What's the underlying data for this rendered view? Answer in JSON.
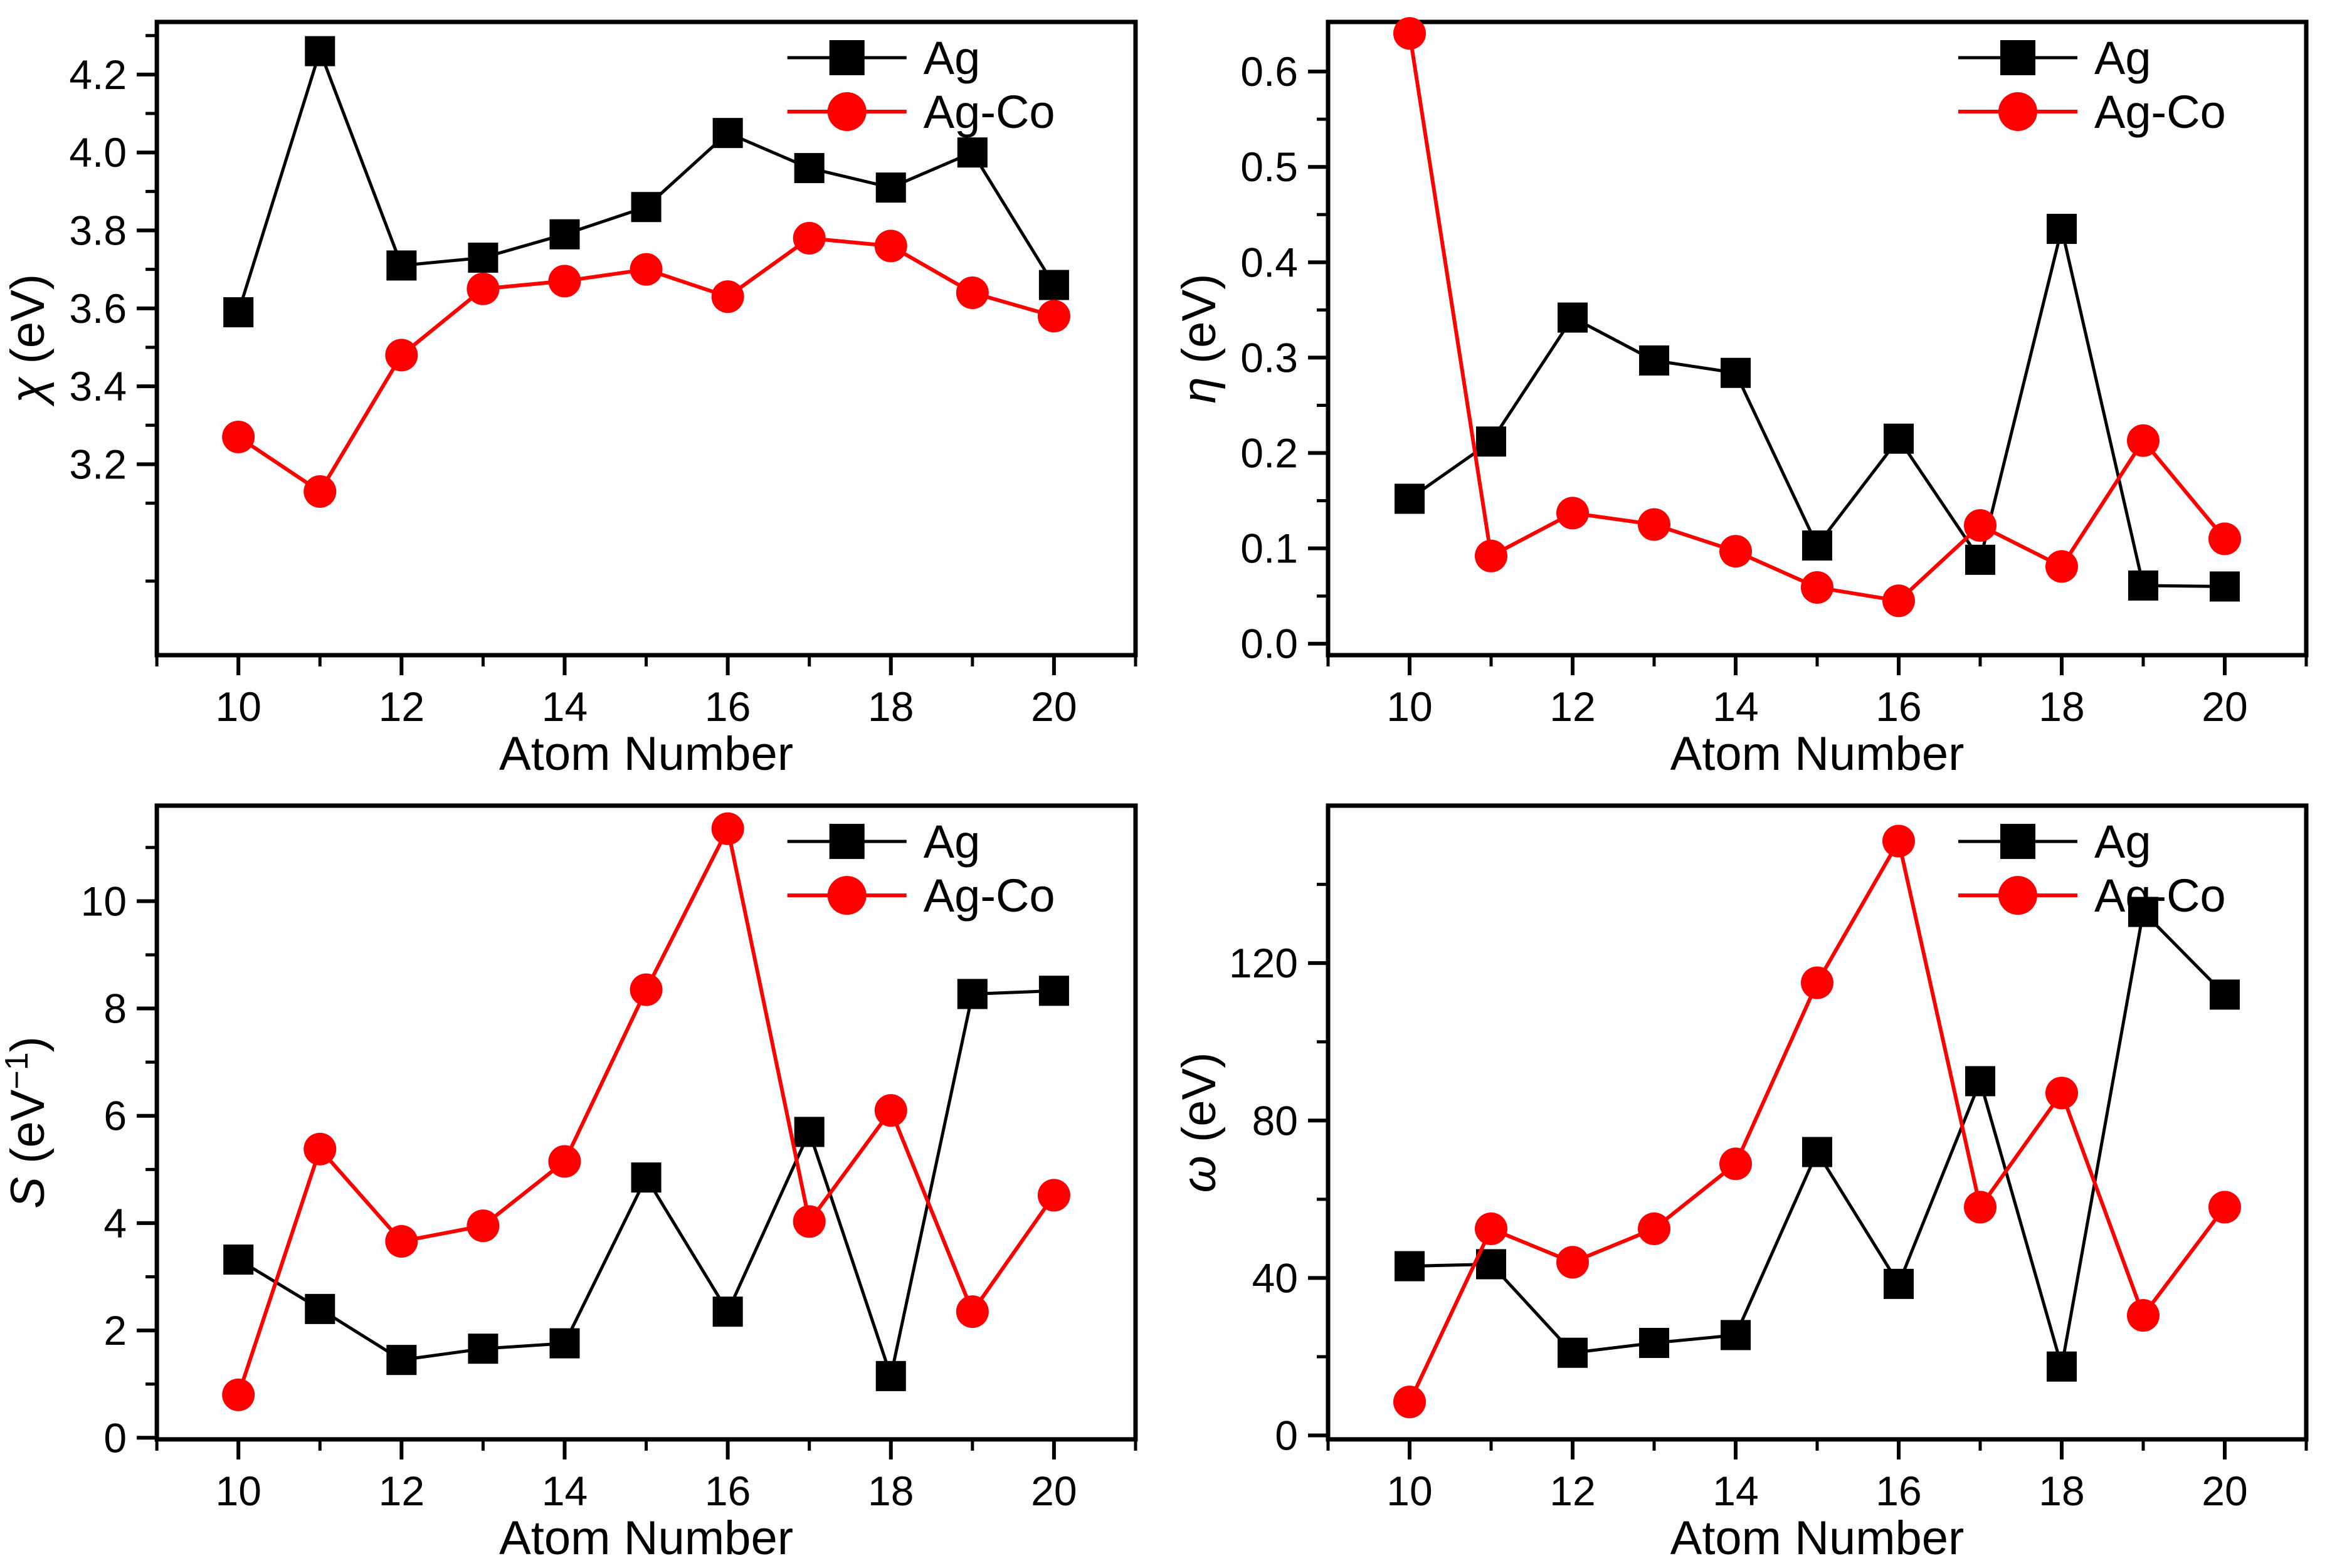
{
  "figure": {
    "background": "#fcfdfe",
    "xlabel": "Atom Number"
  },
  "colors": {
    "ag": "#000000",
    "agco": "#ff0000",
    "text": "#000000"
  },
  "legend": {
    "labels": [
      "Ag",
      "Ag-Co"
    ]
  },
  "chart_data": [
    {
      "id": "chi",
      "type": "line",
      "title": "",
      "xlabel": "Atom Number",
      "ylabel": "χ (eV)",
      "ylabel_symbol": "χ",
      "ylabel_unit_pre": " (eV",
      "ylabel_sup": "",
      "ylabel_unit_post": ")",
      "x": [
        10,
        11,
        12,
        13,
        14,
        15,
        16,
        17,
        18,
        19,
        20
      ],
      "series": [
        {
          "name": "Ag",
          "marker": "square",
          "color": "#000000",
          "values": [
            3.59,
            4.26,
            3.71,
            3.73,
            3.79,
            3.86,
            4.05,
            3.96,
            3.91,
            4.0,
            3.66
          ]
        },
        {
          "name": "Ag-Co",
          "marker": "circle",
          "color": "#ff0000",
          "values": [
            3.27,
            3.13,
            3.48,
            3.65,
            3.67,
            3.7,
            3.63,
            3.78,
            3.76,
            3.64,
            3.58
          ]
        }
      ],
      "xlim": [
        9,
        21
      ],
      "ylim": [
        2.71,
        4.335
      ],
      "xticks": [
        10,
        12,
        14,
        16,
        18,
        20
      ],
      "xtick_labels": [
        "10",
        "12",
        "14",
        "16",
        "18",
        "20"
      ],
      "xminor": [
        9,
        11,
        13,
        15,
        17,
        19,
        21
      ],
      "yticks": [
        3.2,
        3.4,
        3.6,
        3.8,
        4.0,
        4.2
      ],
      "ytick_labels": [
        "3.2",
        "3.4",
        "3.6",
        "3.8",
        "4.0",
        "4.2"
      ],
      "yminor": [
        2.9,
        3.1,
        3.3,
        3.5,
        3.7,
        3.9,
        4.1,
        4.3
      ],
      "grid": false,
      "legend_position": "top-right"
    },
    {
      "id": "eta",
      "type": "line",
      "title": "",
      "xlabel": "Atom Number",
      "ylabel": "η (eV)",
      "ylabel_symbol": "η",
      "ylabel_unit_pre": " (eV",
      "ylabel_sup": "",
      "ylabel_unit_post": ")",
      "x": [
        10,
        11,
        12,
        13,
        14,
        15,
        16,
        17,
        18,
        19,
        20
      ],
      "series": [
        {
          "name": "Ag",
          "marker": "square",
          "color": "#000000",
          "values": [
            0.152,
            0.212,
            0.342,
            0.297,
            0.284,
            0.103,
            0.215,
            0.088,
            0.435,
            0.061,
            0.06
          ]
        },
        {
          "name": "Ag-Co",
          "marker": "circle",
          "color": "#ff0000",
          "values": [
            0.64,
            0.092,
            0.137,
            0.125,
            0.097,
            0.059,
            0.045,
            0.124,
            0.081,
            0.213,
            0.11
          ]
        }
      ],
      "xlim": [
        9,
        21
      ],
      "ylim": [
        -0.012,
        0.652
      ],
      "xticks": [
        10,
        12,
        14,
        16,
        18,
        20
      ],
      "xtick_labels": [
        "10",
        "12",
        "14",
        "16",
        "18",
        "20"
      ],
      "xminor": [
        9,
        11,
        13,
        15,
        17,
        19,
        21
      ],
      "yticks": [
        0.0,
        0.1,
        0.2,
        0.3,
        0.4,
        0.5,
        0.6
      ],
      "ytick_labels": [
        "0.0",
        "0.1",
        "0.2",
        "0.3",
        "0.4",
        "0.5",
        "0.6"
      ],
      "yminor": [
        0.05,
        0.15,
        0.25,
        0.35,
        0.45,
        0.55
      ],
      "grid": false,
      "legend_position": "top-right"
    },
    {
      "id": "S",
      "type": "line",
      "title": "",
      "xlabel": "Atom Number",
      "ylabel": "S (eV⁻¹)",
      "ylabel_symbol": "S",
      "ylabel_unit_pre": " (eV",
      "ylabel_sup": "−1",
      "ylabel_unit_post": ")",
      "x": [
        10,
        11,
        12,
        13,
        14,
        15,
        16,
        17,
        18,
        19,
        20
      ],
      "series": [
        {
          "name": "Ag",
          "marker": "square",
          "color": "#000000",
          "values": [
            3.32,
            2.4,
            1.45,
            1.66,
            1.76,
            4.85,
            2.35,
            5.7,
            1.15,
            8.27,
            8.33
          ]
        },
        {
          "name": "Ag-Co",
          "marker": "circle",
          "color": "#ff0000",
          "values": [
            0.8,
            5.38,
            3.66,
            3.95,
            5.15,
            8.35,
            11.35,
            4.03,
            6.1,
            2.35,
            4.52
          ]
        }
      ],
      "xlim": [
        9,
        21
      ],
      "ylim": [
        -0.03,
        11.78
      ],
      "xticks": [
        10,
        12,
        14,
        16,
        18,
        20
      ],
      "xtick_labels": [
        "10",
        "12",
        "14",
        "16",
        "18",
        "20"
      ],
      "xminor": [
        9,
        11,
        13,
        15,
        17,
        19,
        21
      ],
      "yticks": [
        0,
        2,
        4,
        6,
        8,
        10
      ],
      "ytick_labels": [
        "0",
        "2",
        "4",
        "6",
        "8",
        "10"
      ],
      "yminor": [
        1,
        3,
        5,
        7,
        9,
        11
      ],
      "grid": false,
      "legend_position": "top-right"
    },
    {
      "id": "omega",
      "type": "line",
      "title": "",
      "xlabel": "Atom Number",
      "ylabel": "ω (eV)",
      "ylabel_symbol": "ω",
      "ylabel_unit_pre": " (eV",
      "ylabel_sup": "",
      "ylabel_unit_post": ")",
      "x": [
        10,
        11,
        12,
        13,
        14,
        15,
        16,
        17,
        18,
        19,
        20
      ],
      "series": [
        {
          "name": "Ag",
          "marker": "square",
          "color": "#000000",
          "values": [
            43,
            43.5,
            21,
            23.5,
            25.5,
            72,
            38.5,
            90,
            17.5,
            133,
            112
          ]
        },
        {
          "name": "Ag-Co",
          "marker": "circle",
          "color": "#ff0000",
          "values": [
            8.5,
            52.5,
            44,
            52.5,
            69,
            115,
            151,
            58,
            87,
            30.5,
            58
          ]
        }
      ],
      "xlim": [
        9,
        21
      ],
      "ylim": [
        -1,
        160
      ],
      "xticks": [
        10,
        12,
        14,
        16,
        18,
        20
      ],
      "xtick_labels": [
        "10",
        "12",
        "14",
        "16",
        "18",
        "20"
      ],
      "xminor": [
        9,
        11,
        13,
        15,
        17,
        19,
        21
      ],
      "yticks": [
        0,
        40,
        80,
        120
      ],
      "ytick_labels": [
        "0",
        "40",
        "80",
        "120"
      ],
      "yminor": [
        20,
        60,
        100,
        140
      ],
      "grid": false,
      "legend_position": "top-right"
    }
  ]
}
